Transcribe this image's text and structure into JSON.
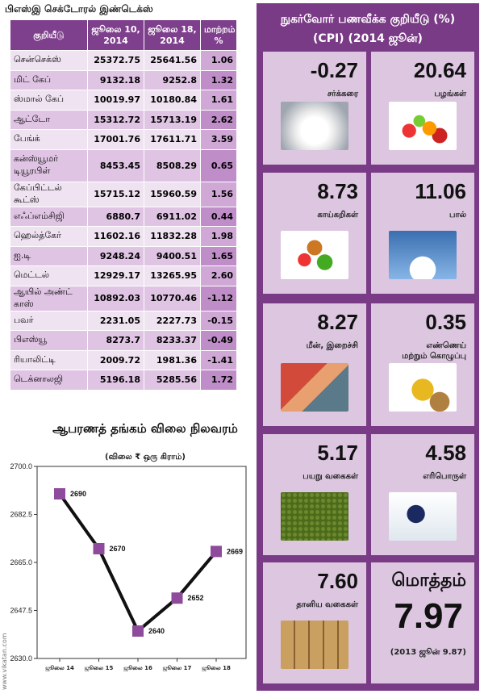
{
  "table": {
    "title": "பிஎஸ்இ செக்டோரல் இண்டெக்ஸ்",
    "headers": [
      "குறியீடு",
      "ஜூலை 10, 2014",
      "ஜூலை 18, 2014",
      "மாற்றம் %"
    ],
    "rows": [
      {
        "name": "சென்செக்ஸ்",
        "jul10": "25372.75",
        "jul18": "25641.56",
        "change": "1.06"
      },
      {
        "name": "மிட் கேப்",
        "jul10": "9132.18",
        "jul18": "9252.8",
        "change": "1.32"
      },
      {
        "name": "ஸ்மால் கேப்",
        "jul10": "10019.97",
        "jul18": "10180.84",
        "change": "1.61"
      },
      {
        "name": "ஆட்டோ",
        "jul10": "15312.72",
        "jul18": "15713.19",
        "change": "2.62"
      },
      {
        "name": "பேங்க்",
        "jul10": "17001.76",
        "jul18": "17611.71",
        "change": "3.59"
      },
      {
        "name": "கன்ஸ்யூமர் டியூரபிள்",
        "jul10": "8453.45",
        "jul18": "8508.29",
        "change": "0.65"
      },
      {
        "name": "கேப்பிட்டல் கூட்ஸ்",
        "jul10": "15715.12",
        "jul18": "15960.59",
        "change": "1.56"
      },
      {
        "name": "எஃப்எம்சிஜி",
        "jul10": "6880.7",
        "jul18": "6911.02",
        "change": "0.44"
      },
      {
        "name": "ஹெல்த்கேர்",
        "jul10": "11602.16",
        "jul18": "11832.28",
        "change": "1.98"
      },
      {
        "name": "ஐ.டி",
        "jul10": "9248.24",
        "jul18": "9400.51",
        "change": "1.65"
      },
      {
        "name": "மெட்டல்",
        "jul10": "12929.17",
        "jul18": "13265.95",
        "change": "2.60"
      },
      {
        "name": "ஆயில் அண்ட் காஸ்",
        "jul10": "10892.03",
        "jul18": "10770.46",
        "change": "-1.12"
      },
      {
        "name": "பவர்",
        "jul10": "2231.05",
        "jul18": "2227.73",
        "change": "-0.15"
      },
      {
        "name": "பிஎஸ்யூ",
        "jul10": "8273.7",
        "jul18": "8233.37",
        "change": "-0.49"
      },
      {
        "name": "ரியாலிட்டி",
        "jul10": "2009.72",
        "jul18": "1981.36",
        "change": "-1.41"
      },
      {
        "name": "டெக்னாலஜி",
        "jul10": "5196.18",
        "jul18": "5285.56",
        "change": "1.72"
      }
    ]
  },
  "chart_data": {
    "type": "line",
    "title": "ஆபரணத் தங்கம் விலை நிலவரம்",
    "subtitle": "(விலை ₹ ஒரு கிராம்)",
    "xlabel": "",
    "ylabel": "",
    "categories": [
      "ஜூலை 14",
      "ஜூலை 15",
      "ஜூலை 16",
      "ஜூலை 17",
      "ஜூலை 18"
    ],
    "series": [
      {
        "values": [
          2690,
          2670,
          2640,
          2652,
          2669
        ]
      }
    ],
    "ylim": [
      2630.0,
      2700.0
    ],
    "yticks": [
      "2630.0",
      "2647.5",
      "2665.0",
      "2682.5",
      "2700.0"
    ],
    "data_labels": [
      "2690",
      "2670",
      "2640",
      "2652",
      "2669"
    ],
    "grid": false,
    "colors": {
      "line": "#111111",
      "marker": "#8e4b9b"
    }
  },
  "cpi": {
    "title_line1": "நுகர்வோர் பணவீக்க குறியீடு (%)",
    "title_line2": "(CPI) (2014 ஜூன்)",
    "items": [
      {
        "value": "-0.27",
        "label": "சர்க்கரை",
        "icon": "sugar-icon"
      },
      {
        "value": "20.64",
        "label": "பழங்கள்",
        "icon": "fruits-icon"
      },
      {
        "value": "8.73",
        "label": "காய்கறிகள்",
        "icon": "vegetables-icon"
      },
      {
        "value": "11.06",
        "label": "பால்",
        "icon": "milk-icon"
      },
      {
        "value": "8.27",
        "label": "மீன், இறைச்சி",
        "icon": "fish-meat-icon"
      },
      {
        "value": "0.35",
        "label": "எண்ணெய் மற்றும் கொழுப்பு",
        "icon": "oil-icon"
      },
      {
        "value": "5.17",
        "label": "பயறு வகைகள்",
        "icon": "pulses-icon"
      },
      {
        "value": "4.58",
        "label": "எரிபொருள்",
        "icon": "fuel-icon"
      },
      {
        "value": "7.60",
        "label": "தானிய வகைகள்",
        "icon": "grains-icon"
      }
    ],
    "total": {
      "label": "மொத்தம்",
      "value": "7.97",
      "previous": "(2013 ஜூன் 9.87)"
    }
  },
  "watermark": "www.vikatan.com",
  "colors": {
    "purple": "#7a3b86",
    "cell": "#dcc6e0"
  }
}
